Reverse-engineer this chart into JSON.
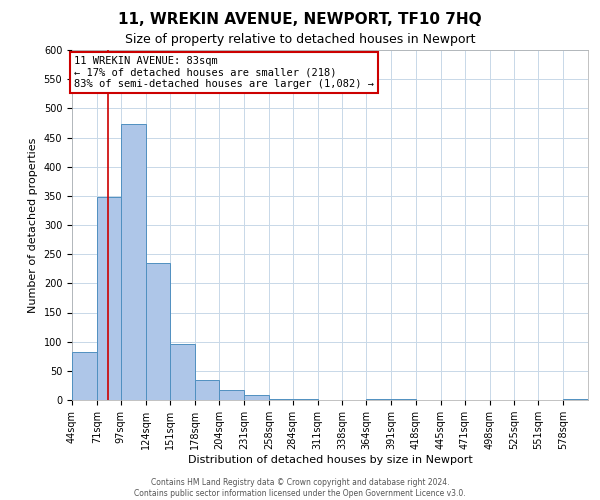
{
  "title": "11, WREKIN AVENUE, NEWPORT, TF10 7HQ",
  "subtitle": "Size of property relative to detached houses in Newport",
  "xlabel": "Distribution of detached houses by size in Newport",
  "ylabel": "Number of detached properties",
  "bar_values": [
    83,
    348,
    474,
    235,
    96,
    35,
    18,
    8,
    1,
    1,
    0,
    0,
    1,
    1,
    0,
    0,
    0,
    0,
    0,
    0,
    1
  ],
  "bin_labels": [
    "44sqm",
    "71sqm",
    "97sqm",
    "124sqm",
    "151sqm",
    "178sqm",
    "204sqm",
    "231sqm",
    "258sqm",
    "284sqm",
    "311sqm",
    "338sqm",
    "364sqm",
    "391sqm",
    "418sqm",
    "445sqm",
    "471sqm",
    "498sqm",
    "525sqm",
    "551sqm",
    "578sqm"
  ],
  "bin_edges": [
    44,
    71,
    97,
    124,
    151,
    178,
    204,
    231,
    258,
    284,
    311,
    338,
    364,
    391,
    418,
    445,
    471,
    498,
    525,
    551,
    578,
    605
  ],
  "bar_color": "#aec6e8",
  "bar_edge_color": "#5090c0",
  "reference_line_x": 83,
  "reference_line_color": "#cc0000",
  "ylim": [
    0,
    600
  ],
  "yticks": [
    0,
    50,
    100,
    150,
    200,
    250,
    300,
    350,
    400,
    450,
    500,
    550,
    600
  ],
  "annotation_title": "11 WREKIN AVENUE: 83sqm",
  "annotation_line1": "← 17% of detached houses are smaller (218)",
  "annotation_line2": "83% of semi-detached houses are larger (1,082) →",
  "annotation_box_color": "#ffffff",
  "annotation_border_color": "#cc0000",
  "footer_line1": "Contains HM Land Registry data © Crown copyright and database right 2024.",
  "footer_line2": "Contains public sector information licensed under the Open Government Licence v3.0.",
  "background_color": "#ffffff",
  "grid_color": "#c8d8e8",
  "title_fontsize": 11,
  "subtitle_fontsize": 9,
  "ylabel_fontsize": 8,
  "xlabel_fontsize": 8,
  "tick_fontsize": 7,
  "annotation_fontsize": 7.5,
  "footer_fontsize": 5.5
}
